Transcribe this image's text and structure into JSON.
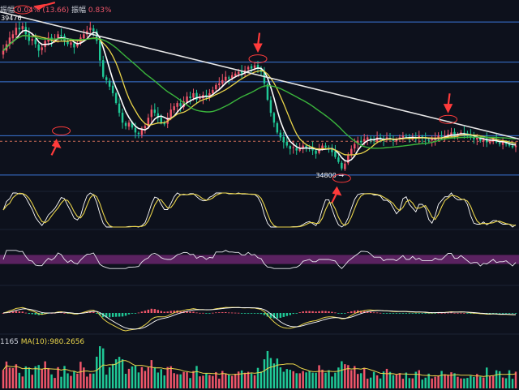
{
  "header": {
    "amplitude_label": "振幅",
    "change_pct": "0.04%",
    "change_abs": "(13.66)",
    "amplitude_label_2": "振幅",
    "amplitude_value": "0.83%"
  },
  "volume_header": {
    "volume_value": "1165",
    "ma_label": "MA(10):980.2656"
  },
  "colors": {
    "background": "#0d111c",
    "up": "#f0566a",
    "down": "#1fc896",
    "ma_short": "#ffffff",
    "ma_mid": "#e9d44a",
    "ma_long": "#3ab43c",
    "trendline": "#e6e6e6",
    "hline": "#3b77d8",
    "dash_line": "#c96a56",
    "arrow": "#ff3b3b",
    "rsi_band": "#5a2260",
    "macd_dif": "#e9d44a",
    "macd_dea": "#ffffff"
  },
  "chart_data": [
    {
      "type": "candlestick",
      "panel": "price",
      "x": [
        0,
        1,
        2,
        3,
        4,
        5,
        6,
        7,
        8,
        9,
        10,
        11,
        12,
        13,
        14,
        15,
        16,
        17,
        18,
        19,
        20,
        21,
        22,
        23,
        24,
        25,
        26,
        27,
        28,
        29,
        30,
        31,
        32,
        33,
        34,
        35,
        36,
        37,
        38,
        39,
        40,
        41,
        42,
        43,
        44,
        45,
        46,
        47,
        48,
        49,
        50,
        51,
        52,
        53,
        54,
        55,
        56,
        57,
        58,
        59,
        60,
        61,
        62,
        63,
        64,
        65,
        66,
        67,
        68,
        69,
        70,
        71,
        72,
        73,
        74,
        75,
        76,
        77,
        78,
        79,
        80,
        81,
        82,
        83,
        84,
        85,
        86,
        87,
        88,
        89,
        90,
        91,
        92,
        93,
        94,
        95,
        96,
        97,
        98,
        99,
        100,
        101,
        102,
        103,
        104,
        105,
        106,
        107,
        108,
        109,
        110,
        111,
        112,
        113,
        114,
        115,
        116,
        117,
        118,
        119,
        120,
        121,
        122,
        123,
        124,
        125,
        126,
        127,
        128,
        129,
        130,
        131,
        132,
        133,
        134,
        135,
        136,
        137,
        138,
        139,
        140,
        141,
        142,
        143,
        144,
        145,
        146,
        147,
        148,
        149,
        150,
        151,
        152,
        153,
        154,
        155,
        156,
        157,
        158,
        159
      ],
      "close": [
        38600,
        38800,
        39000,
        39100,
        39300,
        39250,
        39350,
        39100,
        38900,
        38950,
        38800,
        38600,
        38700,
        38900,
        39000,
        38900,
        38950,
        39100,
        39050,
        38900,
        38800,
        38850,
        38700,
        38800,
        39000,
        39100,
        39200,
        39300,
        39200,
        38900,
        38300,
        37800,
        37700,
        37500,
        37300,
        37000,
        36700,
        36400,
        36300,
        36400,
        36250,
        36100,
        36050,
        36200,
        36300,
        36550,
        36800,
        36700,
        36550,
        36400,
        36350,
        36550,
        36800,
        36900,
        37000,
        36900,
        37050,
        37200,
        37150,
        37300,
        37100,
        37150,
        37250,
        37200,
        37300,
        37400,
        37550,
        37600,
        37700,
        37800,
        37750,
        37850,
        37900,
        37950,
        37900,
        38000,
        38100,
        38050,
        38150,
        38050,
        37950,
        37600,
        37100,
        36700,
        36400,
        36100,
        35950,
        35800,
        35700,
        35600,
        35650,
        35550,
        35600,
        35700,
        35650,
        35600,
        35550,
        35450,
        35600,
        35700,
        35650,
        35600,
        35500,
        35350,
        35200,
        35000,
        35150,
        35400,
        35600,
        35750,
        35850,
        35800,
        35900,
        35950,
        35900,
        35850,
        35950,
        35900,
        35850,
        35950,
        35900,
        35850,
        35900,
        35950,
        36000,
        35950,
        35900,
        35950,
        35900,
        36000,
        35950,
        35900,
        35850,
        35900,
        35950,
        36000,
        35950,
        36000,
        36050,
        36100,
        36000,
        36050,
        36100,
        36050,
        36000,
        35950,
        35900,
        35950,
        35850,
        35900,
        35800,
        35850,
        35900,
        35800,
        35750,
        35800,
        35750,
        35700,
        35650,
        35700
      ],
      "price_levels": [
        39476,
        38250,
        37650,
        36000,
        34800
      ],
      "dashed_level": 35830,
      "annotations": [
        "39476",
        "34800"
      ],
      "ylim": [
        34400,
        39900
      ],
      "series": [
        {
          "name": "MA short",
          "window": 5
        },
        {
          "name": "MA mid",
          "window": 10
        },
        {
          "name": "MA long",
          "window": 30
        }
      ]
    },
    {
      "type": "line",
      "panel": "oscillator",
      "series": [
        {
          "name": "K"
        },
        {
          "name": "D"
        }
      ],
      "ylim": [
        0,
        100
      ]
    },
    {
      "type": "line",
      "panel": "rsi",
      "series": [
        {
          "name": "RSI"
        }
      ],
      "band": [
        40,
        60
      ],
      "ylim": [
        0,
        100
      ]
    },
    {
      "type": "bar",
      "panel": "macd",
      "series": [
        {
          "name": "MACD histogram"
        },
        {
          "name": "DIF"
        },
        {
          "name": "DEA"
        }
      ]
    },
    {
      "type": "bar",
      "panel": "volume",
      "series": [
        {
          "name": "Volume"
        },
        {
          "name": "MA(10)",
          "label": "MA(10):980.2656"
        }
      ]
    }
  ]
}
